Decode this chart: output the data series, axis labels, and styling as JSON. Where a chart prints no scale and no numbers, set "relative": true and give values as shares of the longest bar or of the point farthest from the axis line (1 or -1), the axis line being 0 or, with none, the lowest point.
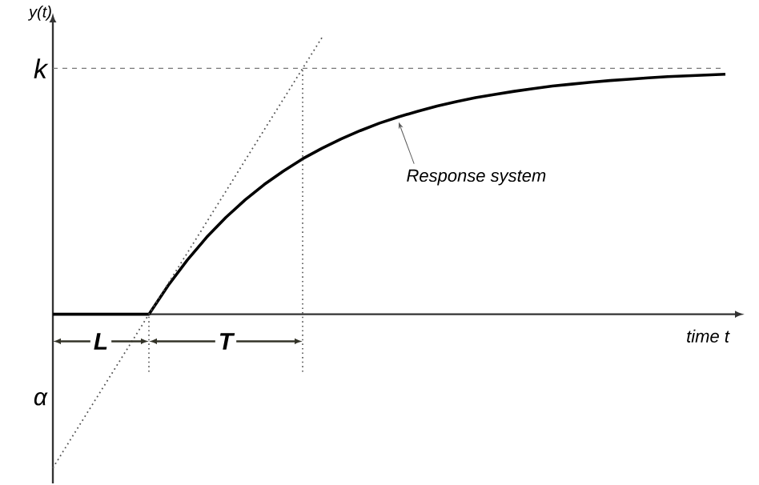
{
  "chart_data": {
    "type": "line",
    "relative": true,
    "xlabel": "time t",
    "ylabel": "y(t)",
    "categories": [
      null,
      null,
      null,
      null,
      null,
      null,
      null,
      null,
      null,
      null,
      null,
      null,
      null,
      null,
      null,
      null,
      null,
      null,
      null,
      null,
      null,
      null,
      null,
      null,
      null,
      null,
      null,
      null,
      null,
      null,
      null,
      null,
      null,
      null,
      null,
      null
    ],
    "series": [
      {
        "name": "Response system",
        "color": "#000000",
        "line_style": "solid",
        "values": [
          0,
          0,
          0,
          0,
          0,
          0,
          0.104,
          0.196,
          0.278,
          0.35,
          0.413,
          0.469,
          0.518,
          0.562,
          0.6,
          0.634,
          0.664,
          0.691,
          0.714,
          0.734,
          0.753,
          0.769,
          0.783,
          0.795,
          0.806,
          0.816,
          0.825,
          0.832,
          0.839,
          0.845,
          0.85,
          0.855,
          0.859,
          0.862,
          0.865,
          0.868
        ]
      },
      {
        "color": "#555555",
        "line_style": "dotted",
        "values": [
          -0.556,
          -0.444,
          -0.333,
          -0.222,
          -0.111,
          0,
          0.111,
          0.222,
          0.333,
          0.444,
          0.556,
          0.667,
          0.778,
          0.889,
          1.0,
          null,
          null,
          null,
          null,
          null,
          null,
          null,
          null,
          null,
          null,
          null,
          null,
          null,
          null,
          null,
          null,
          null,
          null,
          null,
          null,
          null
        ]
      }
    ],
    "ref_lines": [
      {
        "axis": "y",
        "value": 0.889,
        "label": "k",
        "color": "#777777",
        "line_style": "dashed"
      }
    ],
    "annotations": [
      "α",
      "L",
      "T"
    ]
  }
}
